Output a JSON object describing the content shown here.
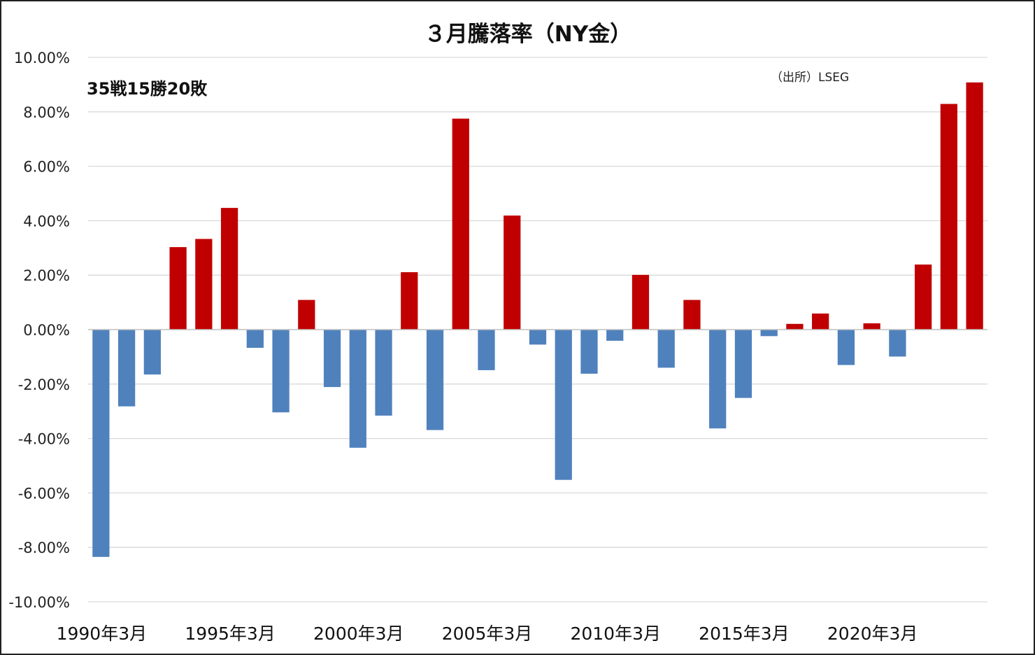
{
  "chart_data": {
    "type": "bar",
    "title": "３月騰落率（NY金）",
    "annotation": "35戦15勝20敗",
    "source": "（出所）LSEG",
    "ylim": [
      -10,
      10
    ],
    "y_ticks": [
      10,
      8,
      6,
      4,
      2,
      0,
      -2,
      -4,
      -6,
      -8,
      -10
    ],
    "y_tick_labels": [
      "10.00%",
      "8.00%",
      "6.00%",
      "4.00%",
      "2.00%",
      "0.00%",
      "-2.00%",
      "-4.00%",
      "-6.00%",
      "-8.00%",
      "-10.00%"
    ],
    "x_tick_labels": [
      "1990年3月",
      "1995年3月",
      "2000年3月",
      "2005年3月",
      "2010年3月",
      "2015年3月",
      "2020年3月"
    ],
    "x_tick_indices": [
      0,
      5,
      10,
      15,
      20,
      25,
      30
    ],
    "grid": true,
    "colors": {
      "positive": "#C00000",
      "negative": "#4F81BD",
      "grid": "#D9D9D9",
      "axis": "#BFBFBF"
    },
    "categories": [
      "1990年3月",
      "1991年3月",
      "1992年3月",
      "1993年3月",
      "1994年3月",
      "1995年3月",
      "1996年3月",
      "1997年3月",
      "1998年3月",
      "1999年3月",
      "2000年3月",
      "2001年3月",
      "2002年3月",
      "2003年3月",
      "2004年3月",
      "2005年3月",
      "2006年3月",
      "2007年3月",
      "2008年3月",
      "2009年3月",
      "2010年3月",
      "2011年3月",
      "2012年3月",
      "2013年3月",
      "2014年3月",
      "2015年3月",
      "2016年3月",
      "2017年3月",
      "2018年3月",
      "2019年3月",
      "2020年3月",
      "2021年3月",
      "2022年3月",
      "2023年3月",
      "2024年3月"
    ],
    "values": [
      -8.35,
      -2.82,
      -1.65,
      3.03,
      3.33,
      4.47,
      -0.67,
      -3.04,
      1.09,
      -2.11,
      -4.34,
      -3.16,
      2.11,
      -3.69,
      7.75,
      -1.49,
      4.19,
      -0.55,
      -5.52,
      -1.62,
      -0.41,
      2.01,
      -1.4,
      1.09,
      -3.63,
      -2.51,
      -0.24,
      0.21,
      0.59,
      -1.3,
      0.23,
      -0.99,
      2.39,
      8.29,
      9.08
    ]
  }
}
